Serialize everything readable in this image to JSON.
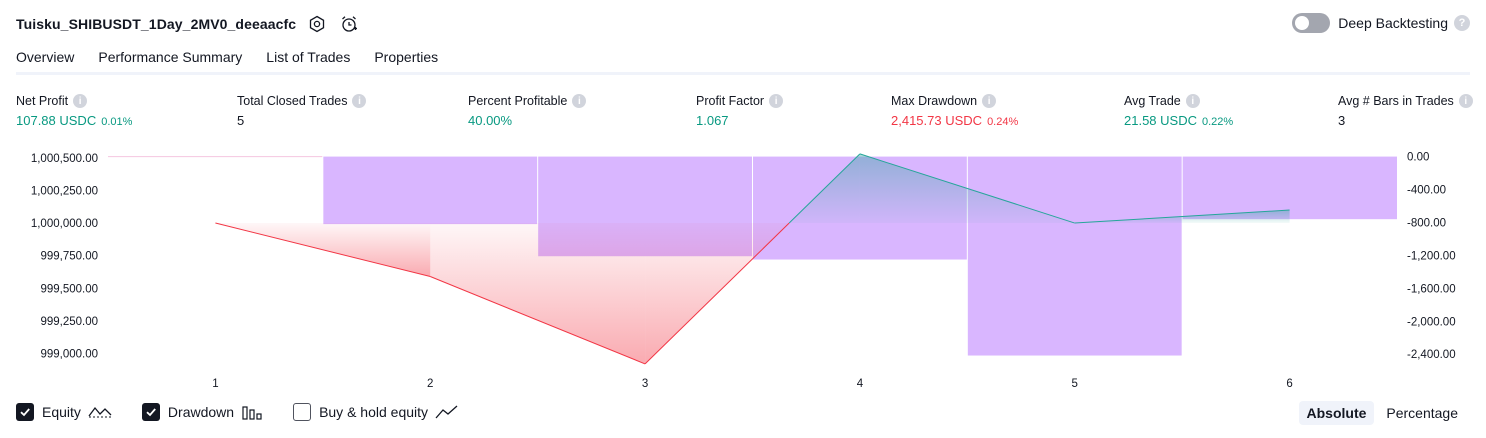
{
  "header": {
    "title": "Tuisku_SHIBUSDT_1Day_2MV0_deeaacfc",
    "icons": [
      "settings-icon",
      "alarm-add-icon"
    ]
  },
  "deep_backtesting": {
    "label": "Deep Backtesting",
    "enabled": false,
    "help": "?"
  },
  "tabs": [
    {
      "label": "Overview",
      "active": true
    },
    {
      "label": "Performance Summary",
      "active": false
    },
    {
      "label": "List of Trades",
      "active": false
    },
    {
      "label": "Properties",
      "active": false
    }
  ],
  "metrics": [
    {
      "label": "Net Profit",
      "value": "107.88 USDC",
      "pct": "0.01%",
      "color": "#089981"
    },
    {
      "label": "Total Closed Trades",
      "value": "5",
      "pct": "",
      "color": "#131722"
    },
    {
      "label": "Percent Profitable",
      "value": "40.00%",
      "pct": "",
      "color": "#089981"
    },
    {
      "label": "Profit Factor",
      "value": "1.067",
      "pct": "",
      "color": "#089981"
    },
    {
      "label": "Max Drawdown",
      "value": "2,415.73 USDC",
      "pct": "0.24%",
      "color": "#f23645"
    },
    {
      "label": "Avg Trade",
      "value": "21.58 USDC",
      "pct": "0.22%",
      "color": "#089981"
    },
    {
      "label": "Avg # Bars in Trades",
      "value": "3",
      "pct": "",
      "color": "#131722"
    }
  ],
  "chart_data": {
    "type": "line",
    "x": [
      1,
      2,
      3,
      4,
      5,
      6
    ],
    "x_tick_labels": [
      "1",
      "2",
      "3",
      "4",
      "5",
      "6"
    ],
    "left_axis": {
      "ylim": [
        998950,
        1000560
      ],
      "tick_labels": [
        "1,000,500.00",
        "1,000,250.00",
        "1,000,000.00",
        "999,750.00",
        "999,500.00",
        "999,250.00",
        "999,000.00"
      ],
      "tick_values": [
        1000500,
        1000250,
        1000000,
        999750,
        999500,
        999250,
        999000
      ]
    },
    "right_axis": {
      "ylim": [
        -2470,
        80
      ],
      "tick_labels": [
        "0.00",
        "-400.00",
        "-800.00",
        "-1,200.00",
        "-1,600.00",
        "-2,000.00",
        "-2,400.00"
      ],
      "tick_values": [
        0,
        -400,
        -800,
        -1200,
        -1600,
        -2000,
        -2400
      ]
    },
    "series": [
      {
        "name": "Equity",
        "axis": "left",
        "x": [
          1,
          2,
          3,
          4,
          5,
          6
        ],
        "values": [
          1000000,
          999590,
          998920,
          1000530,
          1000000,
          1000100
        ]
      },
      {
        "name": "Drawdown",
        "axis": "right",
        "type": "bar",
        "x": [
          1,
          2,
          3,
          4,
          5,
          6
        ],
        "values": [
          0,
          -820,
          -1210,
          -1250,
          -2415.73,
          -760
        ]
      }
    ],
    "baseline": 1000000,
    "colors": {
      "profit": "#26a69a",
      "loss": "#f23645",
      "drawdown": "#d9b6ff",
      "grid": "#f0f3fa"
    }
  },
  "legend": [
    {
      "label": "Equity",
      "checked": true,
      "icon": "equity-line-icon"
    },
    {
      "label": "Drawdown",
      "checked": true,
      "icon": "drawdown-bars-icon"
    },
    {
      "label": "Buy & hold equity",
      "checked": false,
      "icon": "buy-hold-line-icon"
    }
  ],
  "modes": [
    {
      "label": "Absolute",
      "active": true
    },
    {
      "label": "Percentage",
      "active": false
    }
  ]
}
